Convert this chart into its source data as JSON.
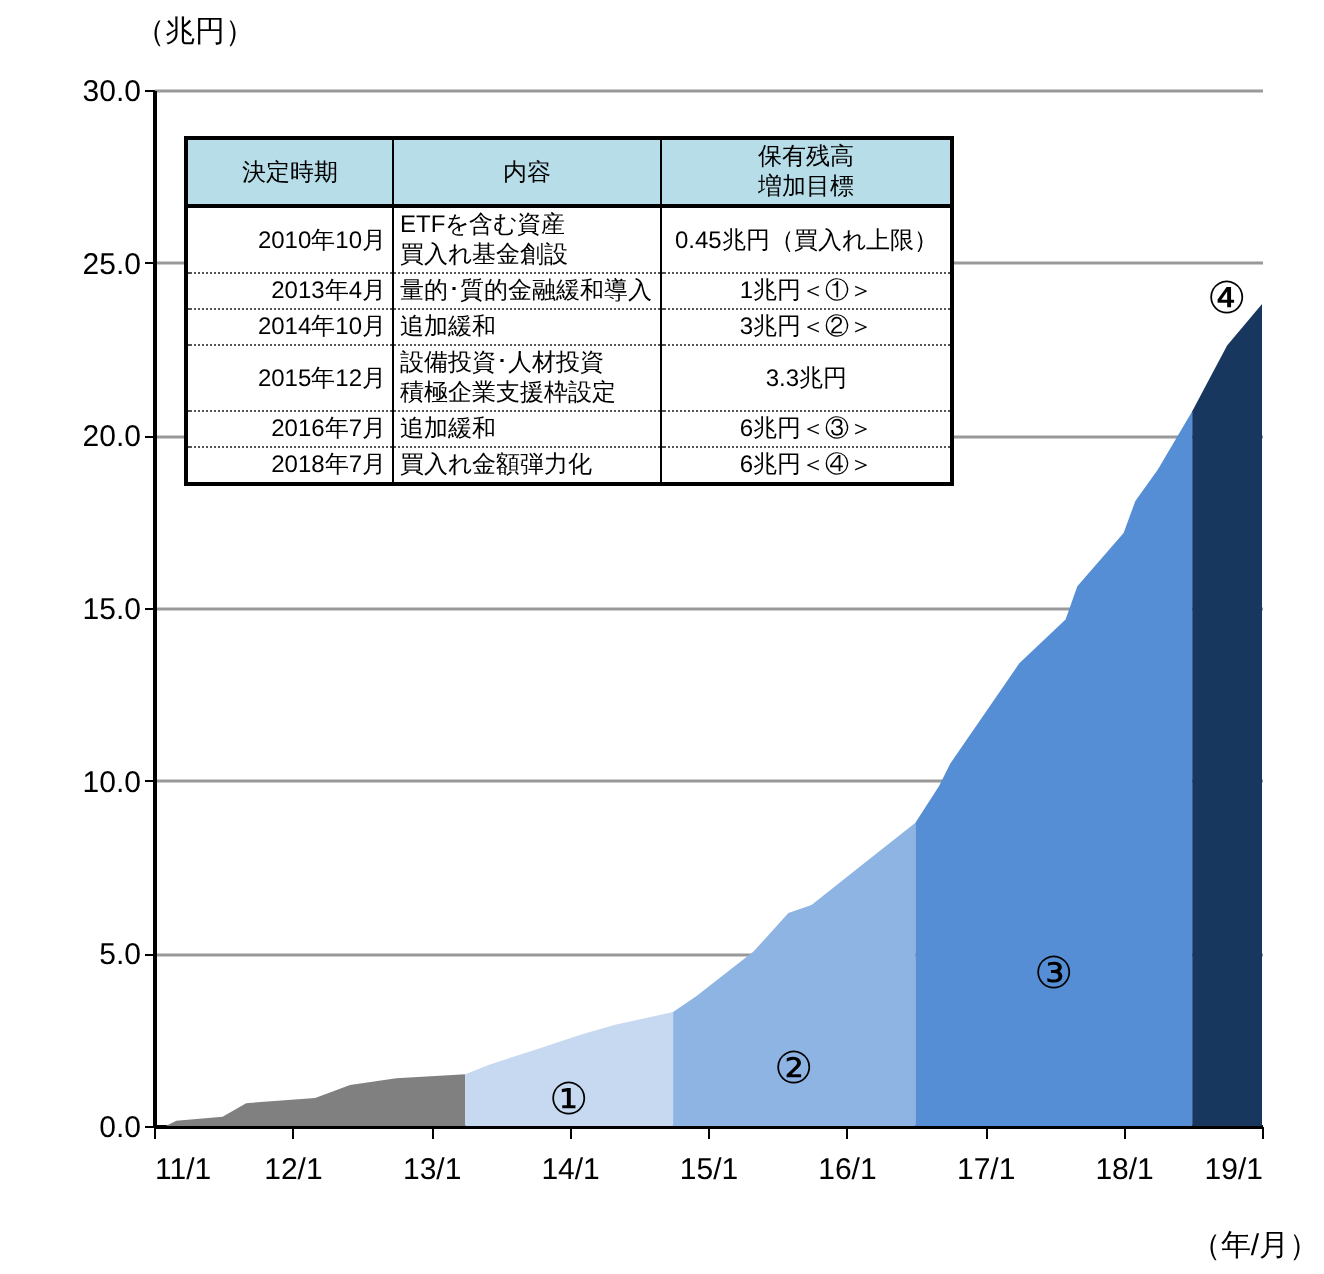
{
  "chart_data": {
    "type": "area",
    "xlabel": "（年/月）",
    "ylabel": "（兆円）",
    "xlim": [
      "2011-01",
      "2019-01"
    ],
    "xticks": [
      {
        "value": "2011-01",
        "label": "11/1"
      },
      {
        "value": "2012-01",
        "label": "12/1"
      },
      {
        "value": "2013-01",
        "label": "13/1"
      },
      {
        "value": "2014-01",
        "label": "14/1"
      },
      {
        "value": "2015-01",
        "label": "15/1"
      },
      {
        "value": "2016-01",
        "label": "16/1"
      },
      {
        "value": "2017-01",
        "label": "17/1"
      },
      {
        "value": "2018-01",
        "label": "18/1"
      },
      {
        "value": "2019-01",
        "label": "19/1"
      }
    ],
    "ylim": [
      0,
      30
    ],
    "yticks": [
      {
        "value": 0,
        "label": "0.0"
      },
      {
        "value": 5,
        "label": "5.0"
      },
      {
        "value": 10,
        "label": "10.0"
      },
      {
        "value": 15,
        "label": "15.0"
      },
      {
        "value": 20,
        "label": "20.0"
      },
      {
        "value": 25,
        "label": "25.0"
      },
      {
        "value": 30,
        "label": "30.0"
      }
    ],
    "grid": "y",
    "series": [
      {
        "color": "#808080",
        "x": [
          "2011-02",
          "2011-03",
          "2011-07",
          "2011-09",
          "2012-03",
          "2012-06",
          "2012-10",
          "2013-04"
        ],
        "values": [
          0,
          0.15,
          0.27,
          0.66,
          0.81,
          1.19,
          1.38,
          1.5
        ]
      },
      {
        "color": "#c6d9f1",
        "x": [
          "2013-04",
          "2013-06",
          "2013-10",
          "2014-02",
          "2014-05",
          "2014-10"
        ],
        "values": [
          1.5,
          1.77,
          2.2,
          2.65,
          2.93,
          3.3
        ]
      },
      {
        "color": "#8eb4e3",
        "x": [
          "2014-10",
          "2014-12",
          "2015-05",
          "2015-08",
          "2015-10",
          "2016-02",
          "2016-07"
        ],
        "values": [
          3.3,
          3.76,
          5.05,
          6.17,
          6.4,
          7.47,
          8.78
        ]
      },
      {
        "color": "#558ed5",
        "x": [
          "2016-07",
          "2016-09",
          "2016-10",
          "2017-04",
          "2017-08",
          "2017-09",
          "2018-01",
          "2018-02",
          "2018-04",
          "2018-07"
        ],
        "values": [
          8.78,
          9.84,
          10.5,
          13.4,
          14.67,
          15.63,
          17.17,
          18.1,
          19.0,
          20.7
        ]
      },
      {
        "color": "#17375e",
        "x": [
          "2018-07",
          "2018-10",
          "2019-01"
        ],
        "values": [
          20.7,
          22.6,
          23.8
        ]
      }
    ],
    "annotations": [
      "①",
      "②",
      "③",
      "④",
      "決定時期",
      "内容",
      "保有残高増加目標",
      "2010年10月",
      "ETFを含む資産買入れ基金創設",
      "0.45兆円（買入れ上限）",
      "2013年4月",
      "量的･質的金融緩和導入",
      "1兆円＜①＞",
      "2014年10月",
      "追加緩和",
      "3兆円＜②＞",
      "2015年12月",
      "設備投資･人材投資積極企業支援枠設定",
      "3.3兆円",
      "2016年7月",
      "追加緩和",
      "6兆円＜③＞",
      "2018年7月",
      "買入れ金額弾力化",
      "6兆円＜④＞"
    ]
  }
}
